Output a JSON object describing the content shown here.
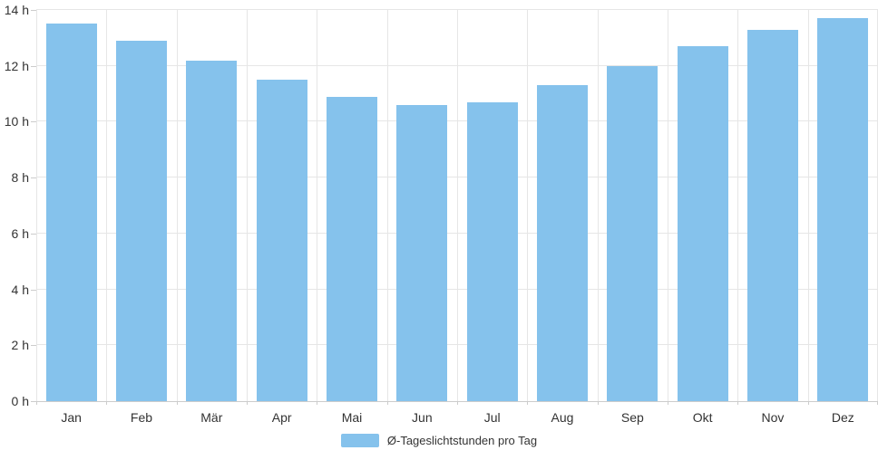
{
  "chart_data": {
    "type": "bar",
    "title": "",
    "categories": [
      "Jan",
      "Feb",
      "Mär",
      "Apr",
      "Mai",
      "Jun",
      "Jul",
      "Aug",
      "Sep",
      "Okt",
      "Nov",
      "Dez"
    ],
    "values": [
      13.5,
      12.9,
      12.2,
      11.5,
      10.9,
      10.6,
      10.7,
      11.3,
      12.0,
      12.7,
      13.3,
      13.7
    ],
    "unit": "h",
    "xlabel": "",
    "ylabel": "",
    "ylim": [
      0,
      14
    ],
    "ytick_step": 2,
    "ytick_labels": [
      "0 h",
      "2 h",
      "4 h",
      "6 h",
      "8 h",
      "10 h",
      "12 h",
      "14 h"
    ],
    "grid": true,
    "legend": {
      "position": "bottom",
      "label": "Ø-Tageslichtstunden pro Tag"
    },
    "colors": {
      "bar": "#85C2EC",
      "gridline": "#E6E6E6",
      "axis": "#CCCCCC",
      "text": "#333333"
    }
  }
}
